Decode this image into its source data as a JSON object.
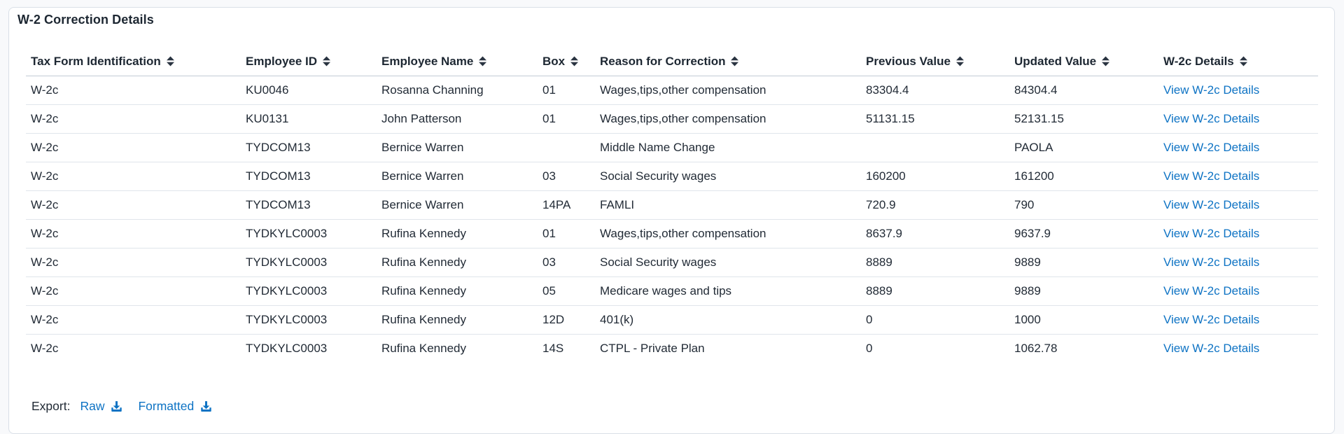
{
  "card": {
    "title": "W-2 Correction Details"
  },
  "table": {
    "columns": [
      {
        "id": "tax-form-identification",
        "label": "Tax Form Identification",
        "sortable": true
      },
      {
        "id": "employee-id",
        "label": "Employee ID",
        "sortable": true
      },
      {
        "id": "employee-name",
        "label": "Employee Name",
        "sortable": true
      },
      {
        "id": "box",
        "label": "Box",
        "sortable": true
      },
      {
        "id": "reason-for-correction",
        "label": "Reason for Correction",
        "sortable": true
      },
      {
        "id": "previous-value",
        "label": "Previous Value",
        "sortable": true
      },
      {
        "id": "updated-value",
        "label": "Updated Value",
        "sortable": true
      },
      {
        "id": "w2c-details",
        "label": "W-2c Details",
        "sortable": true
      }
    ],
    "rows": [
      [
        "W-2c",
        "KU0046",
        "Rosanna Channing",
        "01",
        "Wages,tips,other compensation",
        "83304.4",
        "84304.4",
        "View W-2c Details"
      ],
      [
        "W-2c",
        "KU0131",
        "John Patterson",
        "01",
        "Wages,tips,other compensation",
        "51131.15",
        "52131.15",
        "View W-2c Details"
      ],
      [
        "W-2c",
        "TYDCOM13",
        "Bernice Warren",
        "",
        "Middle Name Change",
        "",
        "PAOLA",
        "View W-2c Details"
      ],
      [
        "W-2c",
        "TYDCOM13",
        "Bernice Warren",
        "03",
        "Social Security wages",
        "160200",
        "161200",
        "View W-2c Details"
      ],
      [
        "W-2c",
        "TYDCOM13",
        "Bernice Warren",
        "14PA",
        "FAMLI",
        "720.9",
        "790",
        "View W-2c Details"
      ],
      [
        "W-2c",
        "TYDKYLC0003",
        "Rufina Kennedy",
        "01",
        "Wages,tips,other compensation",
        "8637.9",
        "9637.9",
        "View W-2c Details"
      ],
      [
        "W-2c",
        "TYDKYLC0003",
        "Rufina Kennedy",
        "03",
        "Social Security wages",
        "8889",
        "9889",
        "View W-2c Details"
      ],
      [
        "W-2c",
        "TYDKYLC0003",
        "Rufina Kennedy",
        "05",
        "Medicare wages and tips",
        "8889",
        "9889",
        "View W-2c Details"
      ],
      [
        "W-2c",
        "TYDKYLC0003",
        "Rufina Kennedy",
        "12D",
        "401(k)",
        "0",
        "1000",
        "View W-2c Details"
      ],
      [
        "W-2c",
        "TYDKYLC0003",
        "Rufina Kennedy",
        "14S",
        "CTPL - Private Plan",
        "0",
        "1062.78",
        "View W-2c Details"
      ]
    ]
  },
  "export": {
    "label": "Export:",
    "raw_label": "Raw",
    "formatted_label": "Formatted"
  },
  "colors": {
    "link_blue": "#0e73c4",
    "text_dark": "#222b36",
    "header_border": "#c3cbd5",
    "row_border": "#e0e5eb",
    "card_border": "#d9dfe7",
    "page_background": "#f8f9fb"
  },
  "icons": {
    "sort": "up-down-sort-triangles",
    "download": "tray-arrow-download"
  }
}
